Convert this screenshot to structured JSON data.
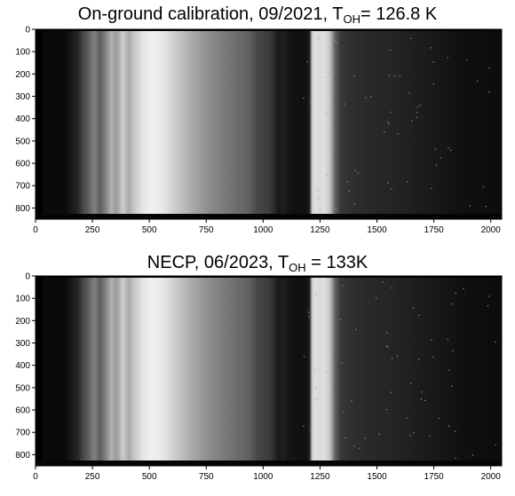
{
  "panels": [
    {
      "title_prefix": "On-ground calibration, 09/2021, T",
      "title_sub": "OH",
      "title_suffix": "= 126.8 K",
      "x_ticks": [
        "0",
        "250",
        "500",
        "750",
        "1000",
        "1250",
        "1500",
        "1750",
        "2000"
      ],
      "y_ticks": [
        "0",
        "100",
        "200",
        "300",
        "400",
        "500",
        "600",
        "700",
        "800"
      ],
      "x_range": [
        0,
        2048
      ],
      "y_range": [
        0,
        850
      ]
    },
    {
      "title_prefix": "NECP, 06/2023, T",
      "title_sub": "OH",
      "title_suffix": " = 133K",
      "x_ticks": [
        "0",
        "250",
        "500",
        "750",
        "1000",
        "1250",
        "1500",
        "1750",
        "2000"
      ],
      "y_ticks": [
        "0",
        "100",
        "200",
        "300",
        "400",
        "500",
        "600",
        "700",
        "800"
      ],
      "x_range": [
        0,
        2048
      ],
      "y_range": [
        0,
        850
      ]
    }
  ],
  "colors": {
    "background": "#ffffff",
    "image_dark": "#000000",
    "image_bright": "#f4f4f4"
  }
}
